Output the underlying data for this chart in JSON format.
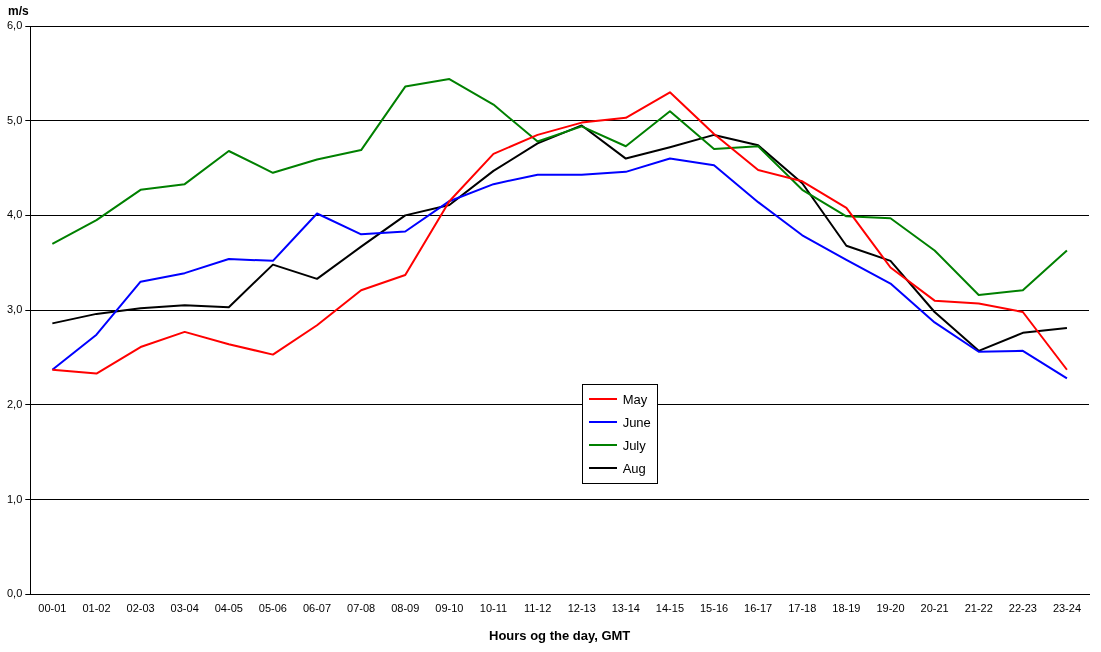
{
  "chart_data": {
    "type": "line",
    "xlabel": "Hours og the day, GMT",
    "ylabel": "m/s",
    "categories": [
      "00-01",
      "01-02",
      "02-03",
      "03-04",
      "04-05",
      "05-06",
      "06-07",
      "07-08",
      "08-09",
      "09-10",
      "10-11",
      "11-12",
      "12-13",
      "13-14",
      "14-15",
      "15-16",
      "16-17",
      "17-18",
      "18-19",
      "19-20",
      "20-21",
      "21-22",
      "22-23",
      "23-24"
    ],
    "series": [
      {
        "name": "May",
        "color": "#ff0000",
        "values": [
          2.37,
          2.33,
          2.61,
          2.77,
          2.64,
          2.53,
          2.84,
          3.21,
          3.37,
          4.15,
          4.65,
          4.85,
          4.98,
          5.03,
          5.3,
          4.86,
          4.48,
          4.36,
          4.08,
          3.45,
          3.1,
          3.07,
          2.98,
          2.37
        ]
      },
      {
        "name": "June",
        "color": "#0000ff",
        "values": [
          2.37,
          2.74,
          3.3,
          3.39,
          3.54,
          3.52,
          4.02,
          3.8,
          3.83,
          4.15,
          4.33,
          4.43,
          4.43,
          4.46,
          4.6,
          4.53,
          4.14,
          3.79,
          3.53,
          3.28,
          2.87,
          2.56,
          2.57,
          2.28
        ]
      },
      {
        "name": "July",
        "color": "#008000",
        "values": [
          3.7,
          3.95,
          4.27,
          4.33,
          4.68,
          4.45,
          4.59,
          4.69,
          5.36,
          5.44,
          5.17,
          4.78,
          4.94,
          4.73,
          5.1,
          4.7,
          4.73,
          4.27,
          3.99,
          3.97,
          3.63,
          3.16,
          3.21,
          3.63
        ]
      },
      {
        "name": "Aug",
        "color": "#000000",
        "values": [
          2.86,
          2.96,
          3.02,
          3.05,
          3.03,
          3.48,
          3.33,
          3.67,
          4.0,
          4.11,
          4.47,
          4.76,
          4.95,
          4.6,
          4.72,
          4.85,
          4.74,
          4.34,
          3.68,
          3.52,
          2.98,
          2.57,
          2.76,
          2.81
        ]
      }
    ],
    "ylim": [
      0,
      6
    ],
    "yticks": [
      {
        "value": 0,
        "label": "0,0"
      },
      {
        "value": 1,
        "label": "1,0"
      },
      {
        "value": 2,
        "label": "2,0"
      },
      {
        "value": 3,
        "label": "3,0"
      },
      {
        "value": 4,
        "label": "4,0"
      },
      {
        "value": 5,
        "label": "5,0"
      },
      {
        "value": 6,
        "label": "6,0"
      }
    ],
    "grid": "y",
    "legend": "bottom",
    "marker": "none",
    "line_style": "solid"
  }
}
